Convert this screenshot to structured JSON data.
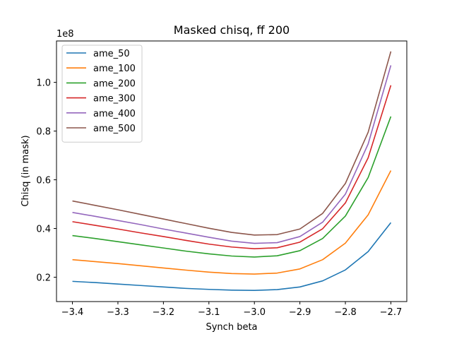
{
  "chart_data": {
    "type": "line",
    "title": "Masked chisq, ff 200",
    "xlabel": "Synch beta",
    "ylabel": "Chisq (in mask)",
    "y_offset_label": "1e8",
    "x": [
      -3.4,
      -3.35,
      -3.3,
      -3.25,
      -3.2,
      -3.15,
      -3.1,
      -3.05,
      -3.0,
      -2.95,
      -2.9,
      -2.85,
      -2.8,
      -2.75,
      -2.7
    ],
    "xticks": [
      -3.4,
      -3.3,
      -3.2,
      -3.1,
      -3.0,
      -2.9,
      -2.8,
      -2.7
    ],
    "xtick_labels": [
      "−3.4",
      "−3.3",
      "−3.2",
      "−3.1",
      "−3.0",
      "−2.9",
      "−2.8",
      "−2.7"
    ],
    "yticks": [
      0.2,
      0.4,
      0.6,
      0.8,
      1.0
    ],
    "ytick_labels": [
      "0.2",
      "0.4",
      "0.6",
      "0.8",
      "1.0"
    ],
    "xlim": [
      -3.435,
      -2.665
    ],
    "ylim": [
      0.1,
      1.17
    ],
    "grid": false,
    "legend_position": "upper-left",
    "series": [
      {
        "name": "ame_50",
        "color": "#1f77b4",
        "values": [
          0.183,
          0.178,
          0.172,
          0.166,
          0.16,
          0.154,
          0.15,
          0.147,
          0.146,
          0.149,
          0.16,
          0.185,
          0.23,
          0.305,
          0.424
        ]
      },
      {
        "name": "ame_100",
        "color": "#ff7f0e",
        "values": [
          0.272,
          0.264,
          0.256,
          0.247,
          0.238,
          0.229,
          0.221,
          0.215,
          0.213,
          0.217,
          0.234,
          0.272,
          0.34,
          0.456,
          0.638
        ]
      },
      {
        "name": "ame_200",
        "color": "#2ca02c",
        "values": [
          0.371,
          0.359,
          0.346,
          0.333,
          0.32,
          0.307,
          0.296,
          0.287,
          0.283,
          0.288,
          0.309,
          0.359,
          0.451,
          0.609,
          0.86
        ]
      },
      {
        "name": "ame_300",
        "color": "#d62728",
        "values": [
          0.428,
          0.413,
          0.398,
          0.382,
          0.367,
          0.351,
          0.336,
          0.324,
          0.317,
          0.321,
          0.344,
          0.399,
          0.505,
          0.69,
          0.988
        ]
      },
      {
        "name": "ame_400",
        "color": "#9467bd",
        "values": [
          0.466,
          0.45,
          0.433,
          0.416,
          0.398,
          0.381,
          0.364,
          0.348,
          0.339,
          0.342,
          0.367,
          0.426,
          0.541,
          0.747,
          1.07
        ]
      },
      {
        "name": "ame_500",
        "color": "#8c564b",
        "values": [
          0.513,
          0.495,
          0.477,
          0.458,
          0.439,
          0.42,
          0.401,
          0.384,
          0.373,
          0.375,
          0.398,
          0.462,
          0.585,
          0.795,
          1.127
        ]
      }
    ]
  }
}
